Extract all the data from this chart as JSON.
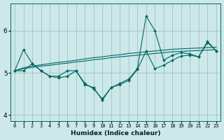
{
  "xlabel": "Humidex (Indice chaleur)",
  "x": [
    0,
    1,
    2,
    3,
    4,
    5,
    6,
    7,
    8,
    9,
    10,
    11,
    12,
    13,
    14,
    15,
    16,
    17,
    18,
    19,
    20,
    21,
    22,
    23
  ],
  "line_dip": [
    5.05,
    5.55,
    5.22,
    5.05,
    4.92,
    4.92,
    5.05,
    5.05,
    4.75,
    4.62,
    4.38,
    4.65,
    4.75,
    4.85,
    5.1,
    6.35,
    6.0,
    5.3,
    5.42,
    5.48,
    5.45,
    5.38,
    5.75,
    5.52
  ],
  "line_dip2": [
    5.05,
    5.05,
    5.22,
    5.05,
    4.92,
    4.88,
    4.92,
    5.05,
    4.72,
    4.65,
    4.35,
    4.65,
    4.72,
    4.82,
    5.08,
    5.52,
    5.1,
    5.18,
    5.3,
    5.4,
    5.42,
    5.38,
    5.72,
    5.52
  ],
  "trend1": [
    5.05,
    5.12,
    5.16,
    5.19,
    5.22,
    5.25,
    5.27,
    5.3,
    5.33,
    5.36,
    5.38,
    5.41,
    5.43,
    5.46,
    5.48,
    5.5,
    5.52,
    5.54,
    5.56,
    5.57,
    5.58,
    5.59,
    5.6,
    5.61
  ],
  "trend2": [
    5.05,
    5.1,
    5.13,
    5.16,
    5.18,
    5.21,
    5.23,
    5.26,
    5.28,
    5.31,
    5.33,
    5.36,
    5.38,
    5.4,
    5.42,
    5.44,
    5.46,
    5.48,
    5.5,
    5.51,
    5.52,
    5.53,
    5.54,
    5.55
  ],
  "bg_color": "#cce8e8",
  "line_color": "#006666",
  "grid_color": "#99bbbb",
  "ylim": [
    3.85,
    6.65
  ],
  "xlim": [
    -0.5,
    23.5
  ],
  "yticks": [
    4,
    5,
    6
  ],
  "xticks": [
    0,
    1,
    2,
    3,
    4,
    5,
    6,
    7,
    8,
    9,
    10,
    11,
    12,
    13,
    14,
    15,
    16,
    17,
    18,
    19,
    20,
    21,
    22,
    23
  ]
}
